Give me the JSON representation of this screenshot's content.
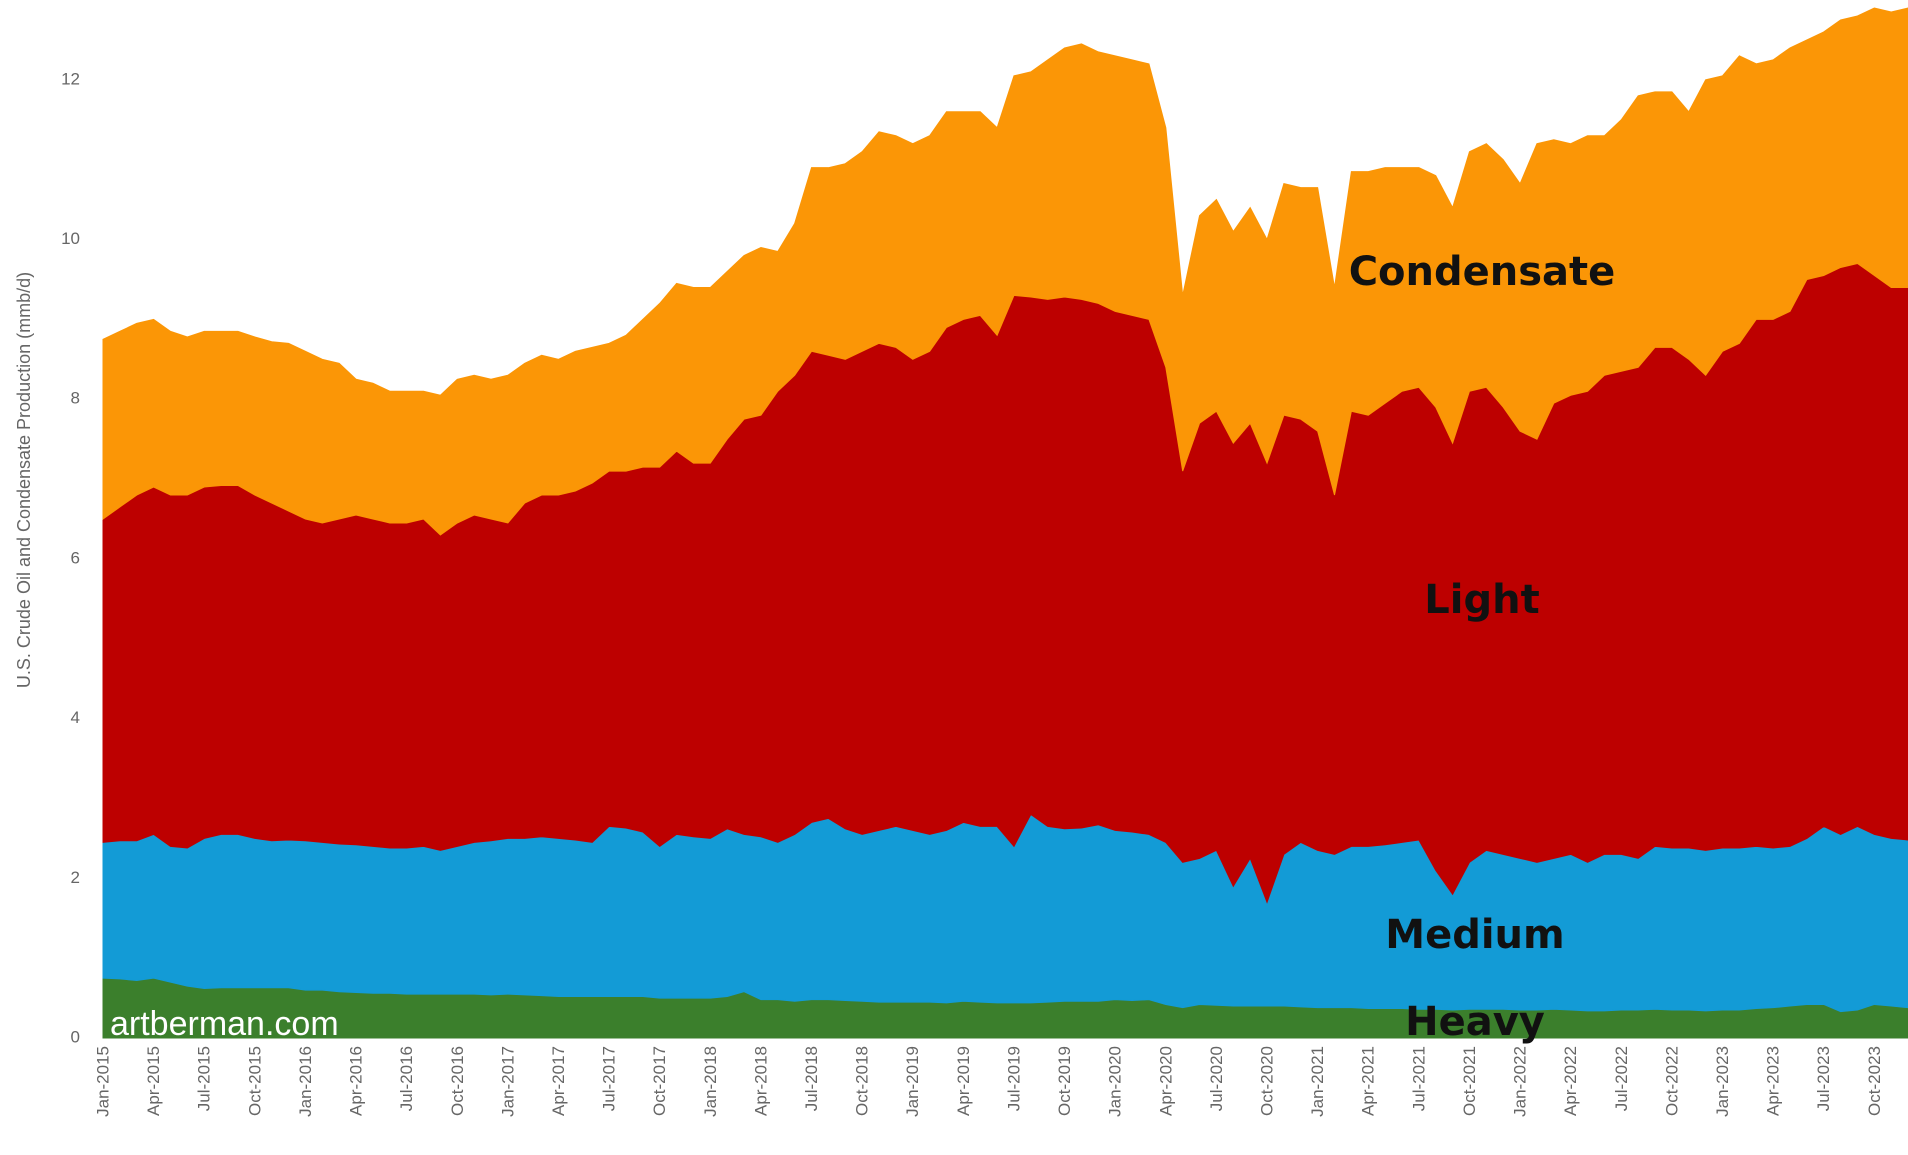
{
  "chart_data": {
    "type": "stacked_area",
    "y_label": "U.S. Crude Oil and Condensate Production (mmb/d)",
    "watermark": "artberman.com",
    "categories": [
      "Jan-2015",
      null,
      null,
      "Apr-2015",
      null,
      null,
      "Jul-2015",
      null,
      null,
      "Oct-2015",
      null,
      null,
      "Jan-2016",
      null,
      null,
      "Apr-2016",
      null,
      null,
      "Jul-2016",
      null,
      null,
      "Oct-2016",
      null,
      null,
      "Jan-2017",
      null,
      null,
      "Apr-2017",
      null,
      null,
      "Jul-2017",
      null,
      null,
      "Oct-2017",
      null,
      null,
      "Jan-2018",
      null,
      null,
      "Apr-2018",
      null,
      null,
      "Jul-2018",
      null,
      null,
      "Oct-2018",
      null,
      null,
      "Jan-2019",
      null,
      null,
      "Apr-2019",
      null,
      null,
      "Jul-2019",
      null,
      null,
      "Oct-2019",
      null,
      null,
      "Jan-2020",
      null,
      null,
      "Apr-2020",
      null,
      null,
      "Jul-2020",
      null,
      null,
      "Oct-2020",
      null,
      null,
      "Jan-2021",
      null,
      null,
      "Apr-2021",
      null,
      null,
      "Jul-2021",
      null,
      null,
      "Oct-2021",
      null,
      null,
      "Jan-2022",
      null,
      null,
      "Apr-2022",
      null,
      null,
      "Jul-2022",
      null,
      null,
      "Oct-2022",
      null,
      null,
      "Jan-2023",
      null,
      null,
      "Apr-2023",
      null,
      null,
      "Jul-2023",
      null,
      null,
      "Oct-2023",
      null,
      null
    ],
    "series": [
      {
        "name": "Heavy",
        "color": "#3b7f2c",
        "values": [
          0.75,
          0.74,
          0.72,
          0.75,
          0.7,
          0.65,
          0.62,
          0.63,
          0.63,
          0.63,
          0.63,
          0.63,
          0.6,
          0.6,
          0.58,
          0.57,
          0.56,
          0.56,
          0.55,
          0.55,
          0.55,
          0.55,
          0.55,
          0.54,
          0.55,
          0.54,
          0.53,
          0.52,
          0.52,
          0.52,
          0.52,
          0.52,
          0.52,
          0.5,
          0.5,
          0.5,
          0.5,
          0.52,
          0.58,
          0.48,
          0.48,
          0.46,
          0.48,
          0.48,
          0.47,
          0.46,
          0.45,
          0.45,
          0.45,
          0.45,
          0.44,
          0.46,
          0.45,
          0.44,
          0.44,
          0.44,
          0.45,
          0.46,
          0.46,
          0.46,
          0.48,
          0.47,
          0.48,
          0.42,
          0.38,
          0.42,
          0.41,
          0.4,
          0.4,
          0.4,
          0.4,
          0.39,
          0.38,
          0.38,
          0.38,
          0.37,
          0.37,
          0.37,
          0.36,
          0.36,
          0.35,
          0.36,
          0.36,
          0.36,
          0.35,
          0.35,
          0.36,
          0.35,
          0.34,
          0.34,
          0.35,
          0.35,
          0.36,
          0.35,
          0.35,
          0.34,
          0.35,
          0.35,
          0.37,
          0.38,
          0.4,
          0.42,
          0.42,
          0.33,
          0.35,
          0.42,
          0.4,
          0.38
        ]
      },
      {
        "name": "Medium",
        "color": "#139bd6",
        "values": [
          1.7,
          1.73,
          1.75,
          1.8,
          1.7,
          1.73,
          1.88,
          1.92,
          1.92,
          1.87,
          1.84,
          1.85,
          1.87,
          1.85,
          1.85,
          1.85,
          1.84,
          1.82,
          1.83,
          1.85,
          1.8,
          1.85,
          1.9,
          1.93,
          1.95,
          1.96,
          1.99,
          1.98,
          1.96,
          1.93,
          2.13,
          2.11,
          2.06,
          1.9,
          2.05,
          2.02,
          2.0,
          2.1,
          1.97,
          2.04,
          1.97,
          2.09,
          2.22,
          2.27,
          2.15,
          2.09,
          2.15,
          2.2,
          2.15,
          2.1,
          2.16,
          2.24,
          2.2,
          2.21,
          1.96,
          2.36,
          2.2,
          2.16,
          2.17,
          2.21,
          2.12,
          2.11,
          2.07,
          2.03,
          1.82,
          1.83,
          1.94,
          1.5,
          1.85,
          1.3,
          1.9,
          2.06,
          1.97,
          1.92,
          2.02,
          2.03,
          2.05,
          2.08,
          2.12,
          1.74,
          1.45,
          1.84,
          1.99,
          1.94,
          1.9,
          1.85,
          1.89,
          1.95,
          1.86,
          1.96,
          1.95,
          1.9,
          2.04,
          2.03,
          2.03,
          2.01,
          2.03,
          2.03,
          2.03,
          2.0,
          2.0,
          2.08,
          2.23,
          2.22,
          2.3,
          2.13,
          2.1,
          2.1
        ]
      },
      {
        "name": "Light",
        "color": "#bd0000",
        "values": [
          4.05,
          4.18,
          4.33,
          4.35,
          4.4,
          4.42,
          4.4,
          4.37,
          4.37,
          4.3,
          4.23,
          4.12,
          4.03,
          4.0,
          4.07,
          4.13,
          4.1,
          4.07,
          4.07,
          4.1,
          3.95,
          4.05,
          4.1,
          4.03,
          3.95,
          4.2,
          4.28,
          4.3,
          4.37,
          4.5,
          4.45,
          4.47,
          4.57,
          4.75,
          4.8,
          4.68,
          4.7,
          4.88,
          5.2,
          5.28,
          5.65,
          5.75,
          5.9,
          5.8,
          5.88,
          6.05,
          6.1,
          6.0,
          5.9,
          6.05,
          6.3,
          6.3,
          6.4,
          6.15,
          6.9,
          6.48,
          6.6,
          6.66,
          6.62,
          6.53,
          6.5,
          6.47,
          6.45,
          5.95,
          4.9,
          5.45,
          5.5,
          5.55,
          5.45,
          5.5,
          5.5,
          5.3,
          5.25,
          4.5,
          5.45,
          5.4,
          5.53,
          5.65,
          5.67,
          5.8,
          5.65,
          5.9,
          5.8,
          5.6,
          5.35,
          5.3,
          5.7,
          5.75,
          5.9,
          6.0,
          6.05,
          6.15,
          6.25,
          6.27,
          6.12,
          5.95,
          6.22,
          6.32,
          6.6,
          6.62,
          6.7,
          7.0,
          6.9,
          7.1,
          7.05,
          7.0,
          6.9,
          6.92
        ]
      },
      {
        "name": "Condensate",
        "color": "#fb9606",
        "values": [
          2.25,
          2.2,
          2.15,
          2.1,
          2.05,
          1.98,
          1.95,
          1.93,
          1.93,
          1.98,
          2.02,
          2.1,
          2.1,
          2.05,
          1.95,
          1.7,
          1.7,
          1.65,
          1.65,
          1.6,
          1.75,
          1.8,
          1.75,
          1.75,
          1.85,
          1.75,
          1.75,
          1.7,
          1.75,
          1.7,
          1.6,
          1.7,
          1.85,
          2.05,
          2.1,
          2.2,
          2.2,
          2.1,
          2.05,
          2.1,
          1.75,
          1.9,
          2.3,
          2.35,
          2.45,
          2.5,
          2.65,
          2.65,
          2.7,
          2.7,
          2.7,
          2.6,
          2.55,
          2.6,
          2.75,
          2.82,
          3.0,
          3.12,
          3.2,
          3.15,
          3.2,
          3.2,
          3.2,
          3.0,
          2.2,
          2.6,
          2.65,
          2.65,
          2.7,
          2.8,
          2.9,
          2.9,
          3.05,
          2.6,
          3.0,
          3.05,
          2.95,
          2.8,
          2.75,
          2.9,
          2.95,
          3.0,
          3.05,
          3.1,
          3.1,
          3.7,
          3.3,
          3.15,
          3.2,
          3.0,
          3.15,
          3.4,
          3.2,
          3.2,
          3.1,
          3.7,
          3.45,
          3.6,
          3.2,
          3.25,
          3.3,
          3.0,
          3.05,
          3.1,
          3.1,
          3.35,
          3.45,
          3.5
        ]
      }
    ],
    "ylim": [
      0,
      13
    ],
    "yticks": [
      0,
      2,
      4,
      6,
      8,
      10,
      12
    ],
    "grid": false
  }
}
